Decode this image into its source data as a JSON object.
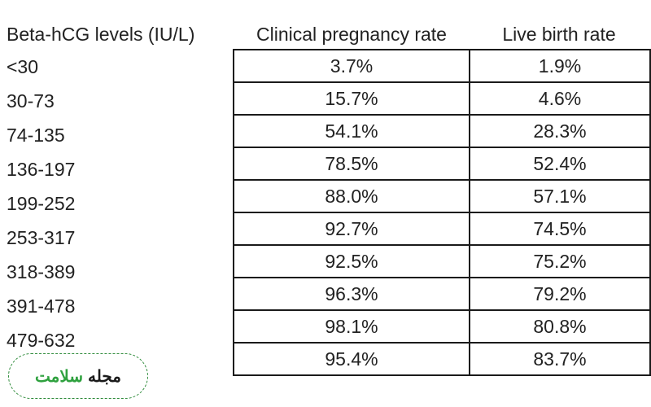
{
  "table": {
    "headers": {
      "range": "Beta-hCG levels (IU/L)",
      "clinical_pregnancy": "Clinical pregnancy rate",
      "live_birth": "Live birth rate"
    },
    "rows": [
      {
        "range": "<30",
        "clinical_pregnancy": "3.7%",
        "live_birth": "1.9%"
      },
      {
        "range": "30-73",
        "clinical_pregnancy": "15.7%",
        "live_birth": "4.6%"
      },
      {
        "range": "74-135",
        "clinical_pregnancy": "54.1%",
        "live_birth": "28.3%"
      },
      {
        "range": "136-197",
        "clinical_pregnancy": "78.5%",
        "live_birth": "52.4%"
      },
      {
        "range": "199-252",
        "clinical_pregnancy": "88.0%",
        "live_birth": "57.1%"
      },
      {
        "range": "253-317",
        "clinical_pregnancy": "92.7%",
        "live_birth": "74.5%"
      },
      {
        "range": "318-389",
        "clinical_pregnancy": "92.5%",
        "live_birth": "75.2%"
      },
      {
        "range": "391-478",
        "clinical_pregnancy": "96.3%",
        "live_birth": "79.2%"
      },
      {
        "range": "479-632",
        "clinical_pregnancy": "98.1%",
        "live_birth": "80.8%"
      },
      {
        "range": "",
        "clinical_pregnancy": "95.4%",
        "live_birth": "83.7%"
      }
    ]
  },
  "logo": {
    "word_1": "مجله",
    "word_2": "سلامت",
    "border_color": "#2e8b3a",
    "accent_color": "#2fa13f"
  }
}
